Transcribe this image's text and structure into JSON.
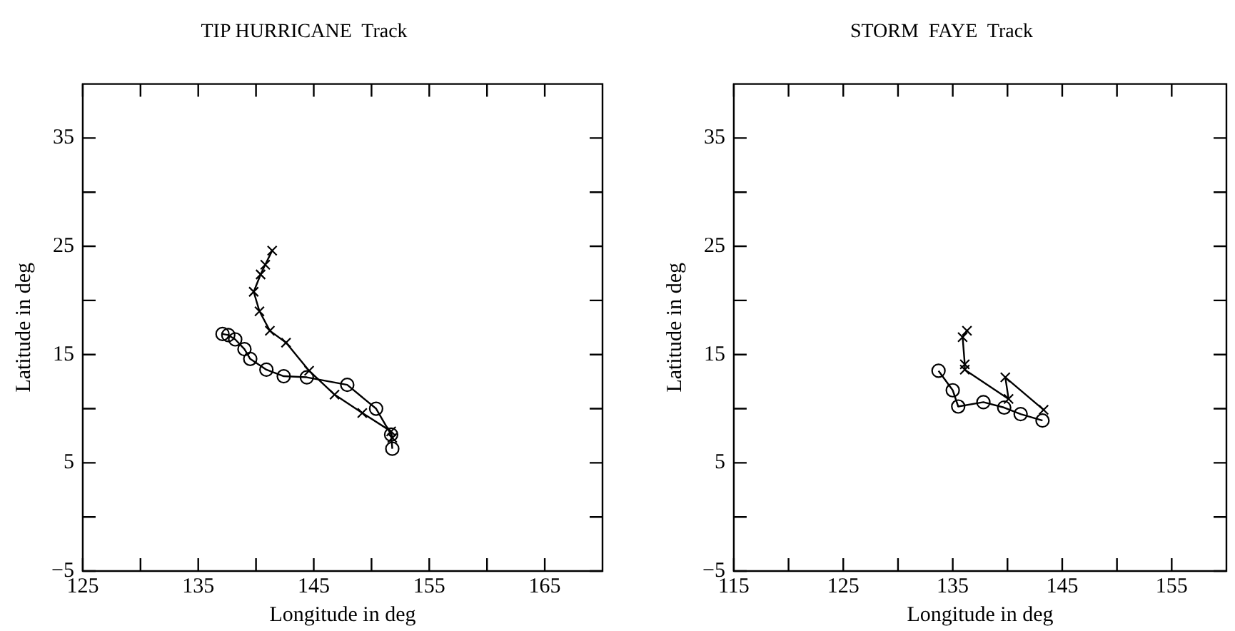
{
  "chart_data": [
    {
      "type": "line",
      "title": "TIP HURRICANE  Track",
      "xlabel": "Longitude in deg",
      "ylabel": "Latitude in deg",
      "xlim": [
        125,
        170
      ],
      "ylim": [
        -5,
        40
      ],
      "xticks": [
        125,
        {
          "value": 130,
          "label": null
        },
        135,
        {
          "value": 140,
          "label": null
        },
        145,
        {
          "value": 150,
          "label": null
        },
        155,
        {
          "value": 160,
          "label": null
        },
        165
      ],
      "yticks": [
        -5,
        {
          "value": 0,
          "label": null
        },
        5,
        {
          "value": 10,
          "label": null
        },
        15,
        {
          "value": 20,
          "label": null
        },
        25,
        {
          "value": 30,
          "label": null
        },
        35
      ],
      "grid": false,
      "legend": false,
      "series": [
        {
          "marker": "cross",
          "color": "#000000",
          "x": [
            151.8,
            151.7,
            149.2,
            146.8,
            144.6,
            142.6,
            141.2,
            140.3,
            139.8,
            140.4,
            140.8,
            141.4
          ],
          "values": [
            7.3,
            7.9,
            9.6,
            11.3,
            13.5,
            16.1,
            17.2,
            19.0,
            20.8,
            22.4,
            23.3,
            24.6
          ]
        },
        {
          "marker": "circle",
          "color": "#000000",
          "x": [
            151.8,
            151.7,
            150.4,
            147.9,
            144.4,
            142.4,
            140.9,
            139.5,
            139.0,
            138.2,
            137.6,
            137.1
          ],
          "values": [
            6.3,
            7.6,
            10.0,
            12.2,
            12.9,
            13.0,
            13.6,
            14.6,
            15.5,
            16.4,
            16.8,
            16.9
          ]
        }
      ]
    },
    {
      "type": "line",
      "title": "STORM  FAYE  Track",
      "xlabel": "Longitude in deg",
      "ylabel": "Latitude in deg",
      "xlim": [
        115,
        160
      ],
      "ylim": [
        -5,
        40
      ],
      "xticks": [
        115,
        {
          "value": 120,
          "label": null
        },
        125,
        {
          "value": 130,
          "label": null
        },
        135,
        {
          "value": 140,
          "label": null
        },
        145,
        {
          "value": 150,
          "label": null
        },
        155
      ],
      "yticks": [
        -5,
        {
          "value": 0,
          "label": null
        },
        5,
        {
          "value": 10,
          "label": null
        },
        15,
        {
          "value": 20,
          "label": null
        },
        25,
        {
          "value": 30,
          "label": null
        },
        35
      ],
      "grid": false,
      "legend": false,
      "series": [
        {
          "marker": "cross",
          "color": "#000000",
          "x": [
            143.3,
            139.8,
            140.1,
            136.1,
            136.1,
            135.9,
            136.3
          ],
          "values": [
            9.9,
            12.9,
            10.9,
            13.6,
            14.1,
            16.6,
            17.2
          ]
        },
        {
          "marker": "circle",
          "color": "#000000",
          "x": [
            143.2,
            141.2,
            139.7,
            137.8,
            135.5,
            135.0,
            133.7
          ],
          "values": [
            8.9,
            9.5,
            10.1,
            10.6,
            10.2,
            11.7,
            13.5
          ]
        }
      ]
    }
  ]
}
